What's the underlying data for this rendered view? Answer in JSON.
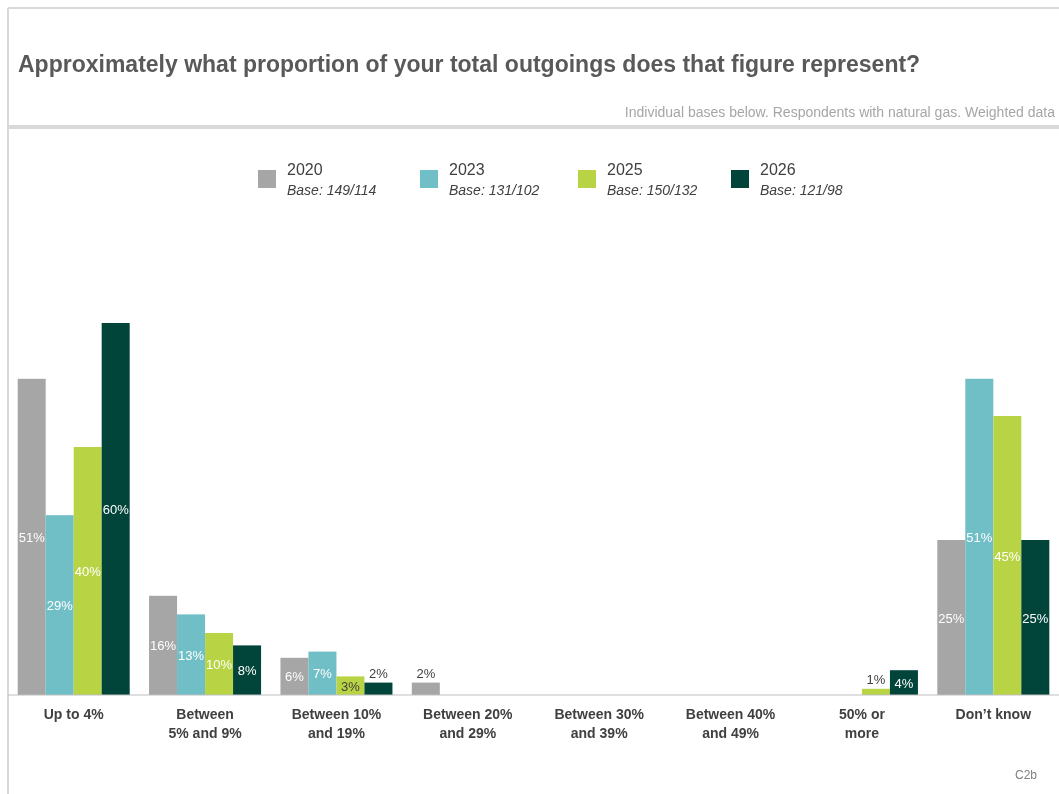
{
  "chart_data": {
    "type": "bar",
    "title": "Approximately what proportion of your total outgoings does that figure represent?",
    "subtitle": "Individual bases below. Respondents with natural gas. Weighted data",
    "categories": [
      "Up to 4%",
      "Between\n5% and 9%",
      "Between 10%\nand 19%",
      "Between 20%\nand 29%",
      "Between 30%\nand 39%",
      "Between 40%\nand 49%",
      "50% or\nmore",
      "Don’t know"
    ],
    "series": [
      {
        "name": "2020",
        "color": "#a6a6a6",
        "values": [
          51,
          16,
          6,
          2,
          null,
          null,
          null,
          25
        ],
        "value_labels": [
          "51%",
          "16%",
          "6%",
          "2%",
          null,
          null,
          null,
          "25%"
        ]
      },
      {
        "name": "2023",
        "color": "#70bec6",
        "values": [
          29,
          13,
          7,
          null,
          null,
          null,
          null,
          51
        ],
        "value_labels": [
          "29%",
          "13%",
          "7%",
          null,
          null,
          null,
          null,
          "51%"
        ]
      },
      {
        "name": "2025",
        "color": "#b8d444",
        "values": [
          40,
          10,
          3,
          null,
          null,
          null,
          1,
          45
        ],
        "value_labels": [
          "40%",
          "10%",
          "3%",
          null,
          null,
          null,
          "1%",
          "45%"
        ]
      },
      {
        "name": "2026",
        "color": "#00443a",
        "values": [
          60,
          8,
          2,
          null,
          null,
          null,
          4,
          25
        ],
        "value_labels": [
          "60%",
          "8%",
          "2%",
          null,
          null,
          null,
          "4%",
          "25%"
        ]
      }
    ],
    "legend": "top",
    "grid": false,
    "annotations": [
      "Base: 149/114",
      "Base: 131/102",
      "Base: 150/132",
      "Base: 121/98",
      "C2b"
    ]
  }
}
